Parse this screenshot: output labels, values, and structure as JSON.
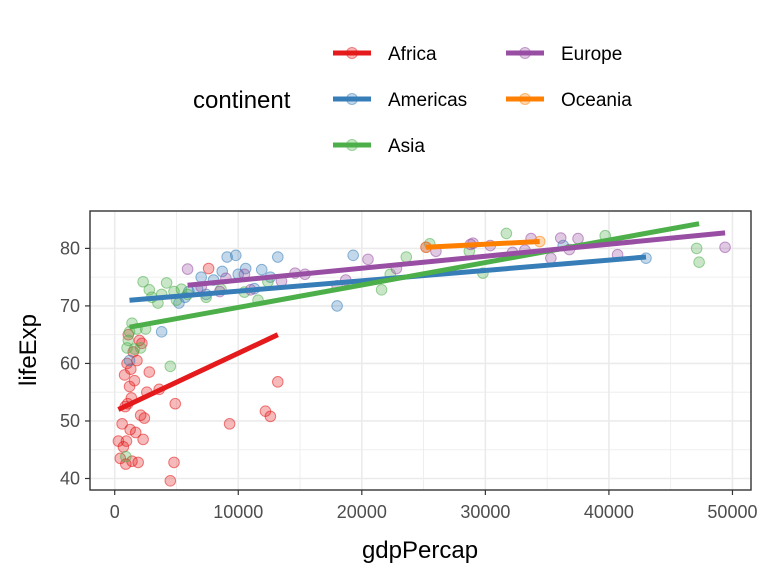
{
  "chart_data": {
    "type": "scatter",
    "xlabel": "gdpPercap",
    "ylabel": "lifeExp",
    "xlim": [
      -2000,
      51500
    ],
    "ylim": [
      38,
      86.5
    ],
    "xticks": [
      0,
      10000,
      20000,
      30000,
      40000,
      50000
    ],
    "xtick_labels": [
      "0",
      "10000",
      "20000",
      "30000",
      "40000",
      "50000"
    ],
    "yticks": [
      40,
      50,
      60,
      70,
      80
    ],
    "ytick_labels": [
      "40",
      "50",
      "60",
      "70",
      "80"
    ],
    "grid": true,
    "legend": {
      "title": "continent",
      "position": "top",
      "entries": [
        "Africa",
        "Americas",
        "Asia",
        "Europe",
        "Oceania"
      ]
    },
    "series": [
      {
        "name": "Africa",
        "color": "#e41a1c",
        "points": [
          [
            300,
            46.5
          ],
          [
            450,
            43.5
          ],
          [
            600,
            49.5
          ],
          [
            700,
            45.5
          ],
          [
            800,
            58
          ],
          [
            850,
            52.5
          ],
          [
            900,
            42.5
          ],
          [
            950,
            46.5
          ],
          [
            1000,
            60
          ],
          [
            1050,
            53
          ],
          [
            1100,
            65
          ],
          [
            1200,
            56
          ],
          [
            1250,
            48.5
          ],
          [
            1300,
            59
          ],
          [
            1350,
            54
          ],
          [
            1400,
            43
          ],
          [
            1500,
            62
          ],
          [
            1600,
            57
          ],
          [
            1700,
            48
          ],
          [
            1800,
            60.5
          ],
          [
            1900,
            42.8
          ],
          [
            2000,
            64
          ],
          [
            2100,
            51
          ],
          [
            2200,
            63.5
          ],
          [
            2300,
            46.8
          ],
          [
            2400,
            50.5
          ],
          [
            2600,
            55
          ],
          [
            2800,
            58.5
          ],
          [
            3600,
            55.5
          ],
          [
            4500,
            39.6
          ],
          [
            4800,
            42.8
          ],
          [
            4900,
            53
          ],
          [
            7600,
            76.5
          ],
          [
            9300,
            49.5
          ],
          [
            12200,
            51.7
          ],
          [
            12600,
            50.8
          ],
          [
            13200,
            56.8
          ]
        ],
        "trend": [
          [
            300,
            52
          ],
          [
            13200,
            65
          ]
        ]
      },
      {
        "name": "Americas",
        "color": "#377eb8",
        "points": [
          [
            1200,
            60.5
          ],
          [
            3800,
            65.5
          ],
          [
            5200,
            70.5
          ],
          [
            5700,
            71.5
          ],
          [
            6000,
            72.5
          ],
          [
            6700,
            73
          ],
          [
            7000,
            75
          ],
          [
            7400,
            72
          ],
          [
            8000,
            74.5
          ],
          [
            8700,
            76
          ],
          [
            9100,
            78.5
          ],
          [
            9800,
            78.8
          ],
          [
            10000,
            75.5
          ],
          [
            10600,
            76.5
          ],
          [
            11300,
            73
          ],
          [
            11900,
            76.3
          ],
          [
            12600,
            75
          ],
          [
            13200,
            78.5
          ],
          [
            18000,
            70
          ],
          [
            19300,
            78.8
          ],
          [
            36300,
            80.5
          ],
          [
            43000,
            78.3
          ]
        ],
        "trend": [
          [
            1200,
            71
          ],
          [
            43000,
            78.5
          ]
        ]
      },
      {
        "name": "Asia",
        "color": "#4daf4a",
        "points": [
          [
            900,
            43.8
          ],
          [
            1000,
            62.7
          ],
          [
            1100,
            64
          ],
          [
            1200,
            65.5
          ],
          [
            1400,
            67
          ],
          [
            1600,
            62.5
          ],
          [
            1800,
            66
          ],
          [
            2100,
            62.7
          ],
          [
            2300,
            74.2
          ],
          [
            2500,
            66
          ],
          [
            2800,
            72.8
          ],
          [
            3000,
            71.5
          ],
          [
            3500,
            70.5
          ],
          [
            3800,
            72
          ],
          [
            4200,
            74
          ],
          [
            4500,
            59.5
          ],
          [
            4800,
            72.5
          ],
          [
            5000,
            71
          ],
          [
            5400,
            72.9
          ],
          [
            5900,
            72
          ],
          [
            7400,
            71.5
          ],
          [
            8600,
            72.9
          ],
          [
            10500,
            72.4
          ],
          [
            11600,
            71
          ],
          [
            12400,
            74.2
          ],
          [
            21600,
            72.8
          ],
          [
            22300,
            75.5
          ],
          [
            23600,
            78.5
          ],
          [
            25500,
            80.8
          ],
          [
            28700,
            79.5
          ],
          [
            29800,
            75.7
          ],
          [
            31700,
            82.6
          ],
          [
            39700,
            82.2
          ],
          [
            47100,
            80
          ],
          [
            47300,
            77.6
          ]
        ],
        "trend": [
          [
            1200,
            66.3
          ],
          [
            47300,
            84.3
          ]
        ]
      },
      {
        "name": "Europe",
        "color": "#984ea3",
        "points": [
          [
            5900,
            76.4
          ],
          [
            7000,
            73.3
          ],
          [
            8500,
            72.5
          ],
          [
            9000,
            74.8
          ],
          [
            10500,
            75.5
          ],
          [
            11000,
            72.8
          ],
          [
            13500,
            74.3
          ],
          [
            14600,
            75.7
          ],
          [
            15400,
            75.5
          ],
          [
            18000,
            73.5
          ],
          [
            18700,
            74.5
          ],
          [
            20500,
            78.1
          ],
          [
            22800,
            76.5
          ],
          [
            25200,
            80.2
          ],
          [
            26000,
            79.5
          ],
          [
            28800,
            80.7
          ],
          [
            29000,
            80.9
          ],
          [
            30400,
            80.5
          ],
          [
            32200,
            79.3
          ],
          [
            33200,
            79.7
          ],
          [
            33700,
            81.7
          ],
          [
            35300,
            78.3
          ],
          [
            36100,
            81.8
          ],
          [
            36800,
            79.8
          ],
          [
            37500,
            81.7
          ],
          [
            40700,
            78.9
          ],
          [
            49400,
            80.2
          ]
        ],
        "trend": [
          [
            5900,
            73.6
          ],
          [
            49400,
            82.7
          ]
        ]
      },
      {
        "name": "Oceania",
        "color": "#ff7f00",
        "points": [
          [
            25200,
            80.2
          ],
          [
            34400,
            81.2
          ]
        ],
        "trend": [
          [
            25200,
            80.2
          ],
          [
            34400,
            81.2
          ]
        ]
      }
    ]
  }
}
